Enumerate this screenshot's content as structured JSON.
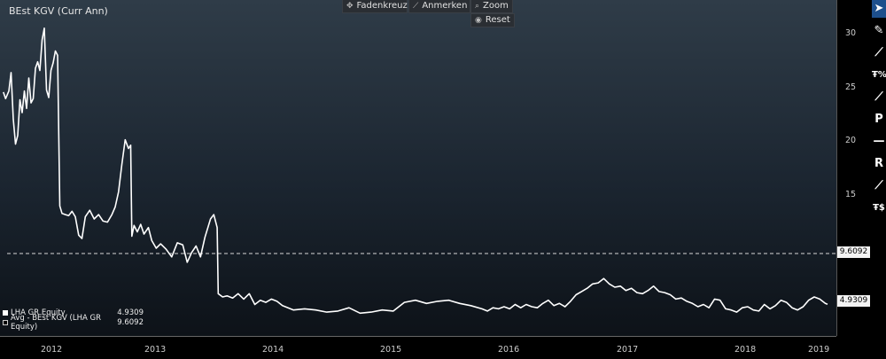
{
  "chart_data": {
    "type": "line",
    "title": "BEst KGV (Curr Ann)",
    "ylim": [
      2,
      33
    ],
    "xlim": [
      2011.75,
      2019.3
    ],
    "yticks": [
      15,
      20,
      25,
      30
    ],
    "xticks": [
      {
        "label": "2012",
        "pos": 2012.1
      },
      {
        "label": "2013",
        "pos": 2013.1
      },
      {
        "label": "2014",
        "pos": 2014.1
      },
      {
        "label": "2015",
        "pos": 2015.1
      },
      {
        "label": "2016",
        "pos": 2016.1
      },
      {
        "label": "2017",
        "pos": 2017.1
      },
      {
        "label": "2018",
        "pos": 2018.1
      },
      {
        "label": "2019",
        "pos": 2019.1
      }
    ],
    "xbreaks": [
      2012.5,
      2013.5,
      2014.5,
      2015.5,
      2016.5,
      2017.5,
      2018.5,
      2019.0
    ],
    "grid": false,
    "legend_position": "bottom-left",
    "series": [
      {
        "name": "LHA GR Equity",
        "color": "#ffffff",
        "last_value": "4.9309",
        "points": [
          [
            2011.78,
            24.5
          ],
          [
            2011.8,
            23.9
          ],
          [
            2011.83,
            24.6
          ],
          [
            2011.85,
            26.3
          ],
          [
            2011.87,
            22.0
          ],
          [
            2011.89,
            19.7
          ],
          [
            2011.91,
            20.5
          ],
          [
            2011.93,
            23.8
          ],
          [
            2011.95,
            22.6
          ],
          [
            2011.97,
            24.6
          ],
          [
            2011.99,
            23.0
          ],
          [
            2012.01,
            25.8
          ],
          [
            2012.03,
            23.5
          ],
          [
            2012.05,
            23.9
          ],
          [
            2012.07,
            26.7
          ],
          [
            2012.09,
            27.3
          ],
          [
            2012.11,
            26.5
          ],
          [
            2012.13,
            29.3
          ],
          [
            2012.15,
            30.4
          ],
          [
            2012.17,
            24.7
          ],
          [
            2012.19,
            24.0
          ],
          [
            2012.21,
            26.5
          ],
          [
            2012.23,
            27.2
          ],
          [
            2012.25,
            28.3
          ],
          [
            2012.27,
            27.9
          ],
          [
            2012.29,
            14.0
          ],
          [
            2012.31,
            13.3
          ],
          [
            2012.34,
            13.2
          ],
          [
            2012.37,
            13.1
          ],
          [
            2012.4,
            13.5
          ],
          [
            2012.43,
            13.0
          ],
          [
            2012.46,
            11.3
          ],
          [
            2012.49,
            11.0
          ],
          [
            2012.52,
            13.0
          ],
          [
            2012.56,
            13.6
          ],
          [
            2012.6,
            12.8
          ],
          [
            2012.64,
            13.2
          ],
          [
            2012.68,
            12.6
          ],
          [
            2012.72,
            12.5
          ],
          [
            2012.76,
            13.2
          ],
          [
            2012.79,
            13.9
          ],
          [
            2012.82,
            15.3
          ],
          [
            2012.85,
            17.8
          ],
          [
            2012.88,
            20.1
          ],
          [
            2012.91,
            19.3
          ],
          [
            2012.93,
            19.6
          ],
          [
            2012.94,
            11.2
          ],
          [
            2012.96,
            12.2
          ],
          [
            2012.99,
            11.6
          ],
          [
            2013.02,
            12.3
          ],
          [
            2013.05,
            11.4
          ],
          [
            2013.09,
            12.0
          ],
          [
            2013.12,
            10.8
          ],
          [
            2013.16,
            10.1
          ],
          [
            2013.2,
            10.5
          ],
          [
            2013.25,
            10.0
          ],
          [
            2013.3,
            9.3
          ],
          [
            2013.35,
            10.6
          ],
          [
            2013.4,
            10.4
          ],
          [
            2013.44,
            8.8
          ],
          [
            2013.48,
            9.7
          ],
          [
            2013.52,
            10.3
          ],
          [
            2013.56,
            9.3
          ],
          [
            2013.6,
            11.1
          ],
          [
            2013.65,
            12.8
          ],
          [
            2013.68,
            13.2
          ],
          [
            2013.71,
            12.0
          ],
          [
            2013.72,
            5.9
          ],
          [
            2013.76,
            5.6
          ],
          [
            2013.8,
            5.7
          ],
          [
            2013.85,
            5.5
          ],
          [
            2013.9,
            5.9
          ],
          [
            2013.95,
            5.4
          ],
          [
            2014.0,
            5.9
          ],
          [
            2014.05,
            4.9
          ],
          [
            2014.1,
            5.3
          ],
          [
            2014.15,
            5.1
          ],
          [
            2014.2,
            5.4
          ],
          [
            2014.25,
            5.2
          ],
          [
            2014.3,
            4.8
          ],
          [
            2014.4,
            4.4
          ],
          [
            2014.5,
            4.5
          ],
          [
            2014.6,
            4.4
          ],
          [
            2014.7,
            4.2
          ],
          [
            2014.8,
            4.3
          ],
          [
            2014.9,
            4.6
          ],
          [
            2015.0,
            4.1
          ],
          [
            2015.1,
            4.2
          ],
          [
            2015.2,
            4.4
          ],
          [
            2015.3,
            4.3
          ],
          [
            2015.4,
            5.1
          ],
          [
            2015.5,
            5.3
          ],
          [
            2015.6,
            5.0
          ],
          [
            2015.7,
            5.2
          ],
          [
            2015.8,
            5.3
          ],
          [
            2015.9,
            5.0
          ],
          [
            2016.0,
            4.8
          ],
          [
            2016.1,
            4.5
          ],
          [
            2016.15,
            4.3
          ],
          [
            2016.2,
            4.6
          ],
          [
            2016.25,
            4.5
          ],
          [
            2016.3,
            4.7
          ],
          [
            2016.35,
            4.5
          ],
          [
            2016.4,
            4.9
          ],
          [
            2016.45,
            4.6
          ],
          [
            2016.5,
            4.9
          ],
          [
            2016.55,
            4.7
          ],
          [
            2016.6,
            4.6
          ],
          [
            2016.65,
            5.0
          ],
          [
            2016.7,
            5.3
          ],
          [
            2016.75,
            4.8
          ],
          [
            2016.8,
            5.0
          ],
          [
            2016.85,
            4.7
          ],
          [
            2016.9,
            5.2
          ],
          [
            2016.95,
            5.8
          ],
          [
            2017.0,
            6.1
          ],
          [
            2017.05,
            6.4
          ],
          [
            2017.1,
            6.8
          ],
          [
            2017.15,
            6.9
          ],
          [
            2017.2,
            7.3
          ],
          [
            2017.25,
            6.8
          ],
          [
            2017.3,
            6.5
          ],
          [
            2017.35,
            6.6
          ],
          [
            2017.4,
            6.2
          ],
          [
            2017.45,
            6.4
          ],
          [
            2017.5,
            6.0
          ],
          [
            2017.55,
            5.9
          ],
          [
            2017.6,
            6.2
          ],
          [
            2017.65,
            6.6
          ],
          [
            2017.7,
            6.1
          ],
          [
            2017.75,
            6.0
          ],
          [
            2017.8,
            5.8
          ],
          [
            2017.85,
            5.4
          ],
          [
            2017.9,
            5.5
          ],
          [
            2017.95,
            5.2
          ],
          [
            2018.0,
            5.0
          ],
          [
            2018.05,
            4.7
          ],
          [
            2018.1,
            4.9
          ],
          [
            2018.15,
            4.6
          ],
          [
            2018.2,
            5.4
          ],
          [
            2018.25,
            5.3
          ],
          [
            2018.3,
            4.5
          ],
          [
            2018.35,
            4.4
          ],
          [
            2018.4,
            4.2
          ],
          [
            2018.45,
            4.6
          ],
          [
            2018.5,
            4.7
          ],
          [
            2018.55,
            4.4
          ],
          [
            2018.6,
            4.3
          ],
          [
            2018.65,
            4.9
          ],
          [
            2018.7,
            4.5
          ],
          [
            2018.75,
            4.8
          ],
          [
            2018.8,
            5.3
          ],
          [
            2018.85,
            5.1
          ],
          [
            2018.9,
            4.6
          ],
          [
            2018.95,
            4.4
          ],
          [
            2019.0,
            4.7
          ],
          [
            2019.05,
            5.3
          ],
          [
            2019.1,
            5.6
          ],
          [
            2019.15,
            5.4
          ],
          [
            2019.2,
            5.0
          ],
          [
            2019.22,
            4.93
          ]
        ]
      },
      {
        "name": "Avg - BEst KGV (LHA GR Equity)",
        "color": "#cccccc",
        "style": "dashed",
        "value": 9.6092,
        "last_value": "9.6092"
      }
    ]
  },
  "header": {
    "title": "BEst KGV (Curr Ann)"
  },
  "toolbar": {
    "fadenkreuz": {
      "label": "Fadenkreuz",
      "icon": "crosshair-icon"
    },
    "anmerken": {
      "label": "Anmerken",
      "icon": "pencil-icon"
    },
    "zoom": {
      "label": "Zoom",
      "icon": "magnifier-icon"
    },
    "reset": {
      "label": "Reset",
      "icon": "reset-icon"
    }
  },
  "legend": {
    "items": [
      {
        "label": "LHA GR Equity",
        "value": "4.9309",
        "color": "#ffffff"
      },
      {
        "label": "Avg - BEst KGV (LHA GR Equity)",
        "value": "9.6092",
        "color": "#cccccc"
      }
    ]
  },
  "axis_right": {
    "ticks": [
      "30",
      "25",
      "20",
      "15"
    ],
    "avg_box": "9.6092",
    "last_box": "4.9309"
  },
  "x_axis": {
    "labels": [
      "2012",
      "2013",
      "2014",
      "2015",
      "2016",
      "2017",
      "2018",
      "2019"
    ]
  },
  "side_tools": [
    {
      "name": "cursor-tool-icon",
      "glyph": "▲",
      "active": true
    },
    {
      "name": "pen-tool-icon",
      "glyph": "✎"
    },
    {
      "name": "trend-line-tool-icon",
      "glyph": "⟋"
    },
    {
      "name": "fib-percent-tool-icon",
      "glyph": "Ŧ"
    },
    {
      "name": "ray-tool-icon",
      "glyph": "⟋"
    },
    {
      "name": "p-tool-icon",
      "glyph": "P"
    },
    {
      "name": "horizontal-line-tool-icon",
      "glyph": "—"
    },
    {
      "name": "r-tool-icon",
      "glyph": "R"
    },
    {
      "name": "segment-tool-icon",
      "glyph": "⟋"
    },
    {
      "name": "fib-dollar-tool-icon",
      "glyph": "Ŧ"
    }
  ]
}
